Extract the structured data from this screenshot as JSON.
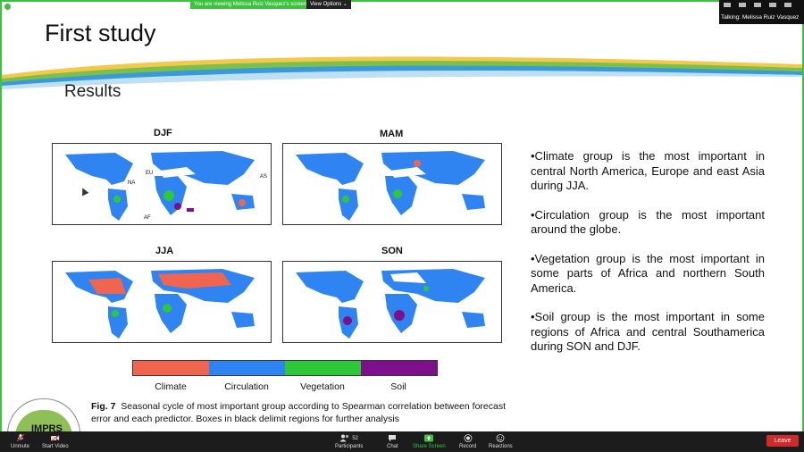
{
  "meeting": {
    "viewing_banner": "You are viewing Melissa Ruiz Vasquez's screen",
    "view_options": "View Options ⌄",
    "talking": "Talking: Melissa Ruiz Vasquez"
  },
  "slide": {
    "title": "First study",
    "subtitle": "Results",
    "panels": [
      "DJF",
      "MAM",
      "JJA",
      "SON"
    ],
    "region_labels": [
      "EU",
      "NA",
      "AS",
      "AF"
    ],
    "legend": [
      "Climate",
      "Circulation",
      "Vegetation",
      "Soil"
    ],
    "legend_colors": [
      "#f0654f",
      "#2f84f2",
      "#2ec73a",
      "#7d0f8a"
    ],
    "caption_label": "Fig. 7",
    "caption_text": "Seasonal cycle of most important group according to Spearman correlation between forecast error and each predictor. Boxes in black delimit regions for further analysis",
    "bullets": [
      "•Climate group is the most important in central North America, Europe and east Asia during JJA.",
      "•Circulation group is the most important around the globe.",
      "•Vegetation group is the most important in some parts of Africa and northern South America.",
      "•Soil group is the most important in some regions of Africa and central Southamerica during SON and DJF."
    ],
    "logo_text": "IMPRS"
  },
  "toolbar": {
    "unmute": "Unmute",
    "start_video": "Start Video",
    "participants": "Participants",
    "participants_count": "52",
    "chat": "Chat",
    "share_screen": "Share Screen",
    "record": "Record",
    "reactions": "Reactions",
    "leave": "Leave"
  }
}
